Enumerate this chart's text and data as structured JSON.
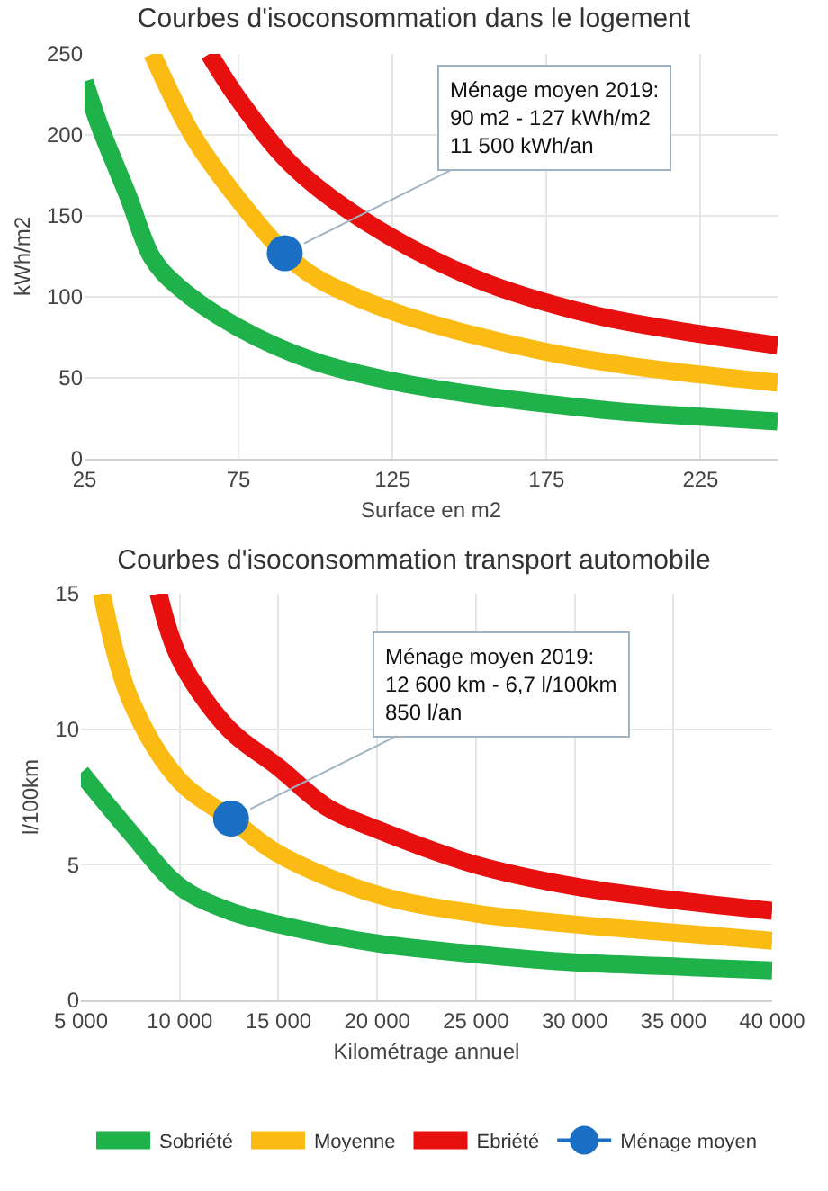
{
  "chart_data": [
    {
      "type": "line",
      "title": "Courbes d'isoconsommation dans le logement",
      "xlabel": "Surface en m2",
      "ylabel": "kWh/m2",
      "xlim": [
        25,
        250
      ],
      "xticks": [
        25,
        75,
        125,
        175,
        225
      ],
      "ylim": [
        0,
        250
      ],
      "yticks": [
        0,
        50,
        100,
        150,
        200,
        250
      ],
      "grid": true,
      "legend": false,
      "series": [
        {
          "color": "#1fb24a",
          "x": [
            25,
            30,
            39,
            47,
            55,
            75,
            100,
            125,
            150,
            175,
            200,
            225,
            250
          ],
          "values": [
            233,
            205,
            163,
            124,
            107,
            81,
            60,
            48,
            40,
            34,
            29,
            26,
            23
          ]
        },
        {
          "color": "#fbbb12",
          "x": [
            47,
            60,
            75,
            90,
            100,
            125,
            150,
            175,
            200,
            225,
            250
          ],
          "values": [
            250,
            200,
            160,
            127,
            112,
            91,
            77,
            66,
            58,
            52,
            47
          ]
        },
        {
          "color": "#e8100f",
          "x": [
            65.5,
            75,
            92,
            115,
            151,
            190,
            225,
            250
          ],
          "values": [
            250,
            222,
            182,
            148,
            112,
            89,
            77,
            70
          ]
        },
        {
          "type": "scatter",
          "marker": "circle",
          "color": "#1a6fc4",
          "x": [
            90
          ],
          "values": [
            127
          ]
        }
      ],
      "annotations": [
        {
          "text": "Ménage moyen 2019:\n90 m2 - 127 kWh/m2\n11 500 kWh/an",
          "x": 90,
          "y": 127
        }
      ]
    },
    {
      "type": "line",
      "title": "Courbes d'isoconsommation transport automobile",
      "xlabel": "Kilométrage annuel",
      "ylabel": "l/100km",
      "xlim": [
        5000,
        40000
      ],
      "xticks": [
        {
          "value": 5000,
          "label": "5 000"
        },
        {
          "value": 10000,
          "label": "10 000"
        },
        {
          "value": 15000,
          "label": "15 000"
        },
        {
          "value": 20000,
          "label": "20 000"
        },
        {
          "value": 25000,
          "label": "25 000"
        },
        {
          "value": 30000,
          "label": "30 000"
        },
        {
          "value": 35000,
          "label": "35 000"
        },
        {
          "value": 40000,
          "label": "40 000"
        }
      ],
      "ylim": [
        0,
        15
      ],
      "yticks": [
        0,
        5,
        10,
        15
      ],
      "grid": true,
      "legend": "bottom",
      "series": [
        {
          "name": "Sobriété",
          "color": "#1fb24a",
          "x": [
            5000,
            7500,
            10000,
            12500,
            15000,
            20000,
            25000,
            30000,
            35000,
            40000
          ],
          "values": [
            8.4,
            6.2,
            4.2,
            3.3,
            2.8,
            2.1,
            1.7,
            1.4,
            1.25,
            1.1
          ]
        },
        {
          "name": "Moyenne",
          "color": "#fbbb12",
          "x": [
            6060,
            7500,
            10000,
            12600,
            15000,
            20000,
            25000,
            30000,
            35000,
            40000
          ],
          "values": [
            15,
            11.1,
            8.1,
            6.7,
            5.4,
            3.9,
            3.2,
            2.8,
            2.5,
            2.2
          ]
        },
        {
          "name": "Ebriété",
          "color": "#e8100f",
          "x": [
            8930,
            10000,
            12500,
            15000,
            17500,
            20000,
            25000,
            30000,
            35000,
            40000
          ],
          "values": [
            15,
            12.6,
            10,
            8.6,
            7.1,
            6.3,
            5.0,
            4.2,
            3.7,
            3.3
          ]
        },
        {
          "name": "Ménage moyen",
          "type": "scatter",
          "marker": "circle",
          "color": "#1a6fc4",
          "x": [
            12600
          ],
          "values": [
            6.7
          ]
        }
      ],
      "annotations": [
        {
          "text": "Ménage moyen 2019:\n12 600 km - 6,7 l/100km\n850 l/an",
          "x": 12600,
          "y": 6.7
        }
      ]
    }
  ]
}
